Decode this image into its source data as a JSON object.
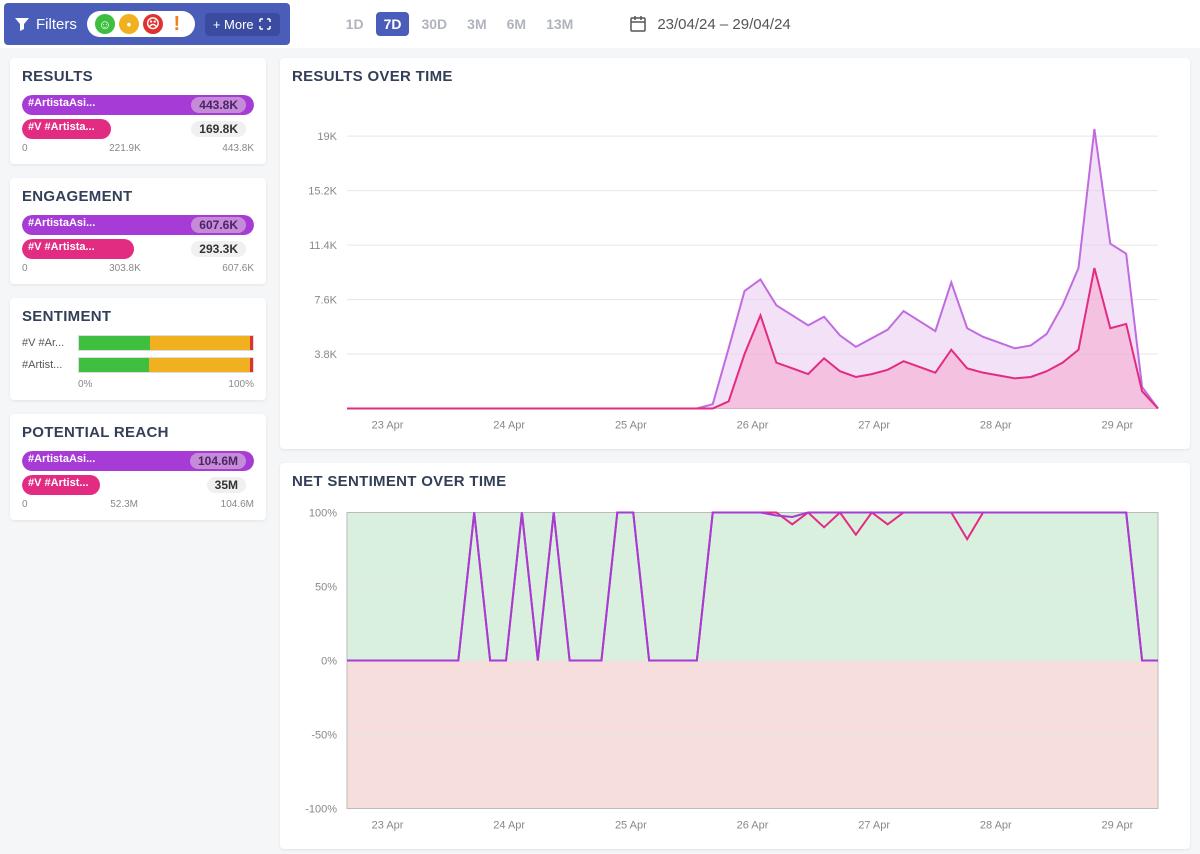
{
  "toolbar": {
    "filters_label": "Filters",
    "more_label": "+ More",
    "sentiment_faces": [
      {
        "color": "#3fbf3f",
        "glyph": "☺"
      },
      {
        "color": "#f0b020",
        "glyph": "•"
      },
      {
        "color": "#e03030",
        "glyph": "☹"
      },
      {
        "color": "#f08020",
        "glyph": "!"
      }
    ],
    "time_options": [
      {
        "label": "1D",
        "active": false
      },
      {
        "label": "7D",
        "active": true
      },
      {
        "label": "30D",
        "active": false
      },
      {
        "label": "3M",
        "active": false
      },
      {
        "label": "6M",
        "active": false
      },
      {
        "label": "13M",
        "active": false
      }
    ],
    "date_range": "23/04/24 – 29/04/24"
  },
  "sidebar": {
    "results": {
      "title": "RESULTS",
      "bars": [
        {
          "label": "#ArtistaAsi...",
          "value_label": "443.8K",
          "value": 443.8,
          "max": 443.8,
          "fill": "#a63bd6",
          "badge_bg": "#c58bd8",
          "badge_fg": "#4a2563"
        },
        {
          "label": "#V #Artista...",
          "value_label": "169.8K",
          "value": 169.8,
          "max": 443.8,
          "fill": "#e22c82",
          "badge_bg": "#f0f0f0",
          "badge_fg": "#333"
        }
      ],
      "axis": [
        "0",
        "221.9K",
        "443.8K"
      ]
    },
    "engagement": {
      "title": "ENGAGEMENT",
      "bars": [
        {
          "label": "#ArtistaAsi...",
          "value_label": "607.6K",
          "value": 607.6,
          "max": 607.6,
          "fill": "#a63bd6",
          "badge_bg": "#c58bd8",
          "badge_fg": "#4a2563"
        },
        {
          "label": "#V #Artista...",
          "value_label": "293.3K",
          "value": 293.3,
          "max": 607.6,
          "fill": "#e22c82",
          "badge_bg": "#f0f0f0",
          "badge_fg": "#333"
        }
      ],
      "axis": [
        "0",
        "303.8K",
        "607.6K"
      ]
    },
    "sentiment": {
      "title": "SENTIMENT",
      "rows": [
        {
          "label": "#V #Ar...",
          "segments": [
            {
              "color": "#3fbf3f",
              "pct": 41
            },
            {
              "color": "#f0b020",
              "pct": 57
            },
            {
              "color": "#e03030",
              "pct": 2
            }
          ]
        },
        {
          "label": "#Artist...",
          "segments": [
            {
              "color": "#3fbf3f",
              "pct": 40
            },
            {
              "color": "#f0b020",
              "pct": 58
            },
            {
              "color": "#e03030",
              "pct": 2
            }
          ]
        }
      ],
      "axis": [
        "0%",
        "100%"
      ]
    },
    "reach": {
      "title": "POTENTIAL REACH",
      "bars": [
        {
          "label": "#ArtistaAsi...",
          "value_label": "104.6M",
          "value": 104.6,
          "max": 104.6,
          "fill": "#a63bd6",
          "badge_bg": "#c58bd8",
          "badge_fg": "#4a2563"
        },
        {
          "label": "#V #Artist...",
          "value_label": "35M",
          "value": 35,
          "max": 104.6,
          "fill": "#e22c82",
          "badge_bg": "#f0f0f0",
          "badge_fg": "#333"
        }
      ],
      "axis": [
        "0",
        "52.3M",
        "104.6M"
      ]
    }
  },
  "results_chart": {
    "title": "RESULTS OVER TIME",
    "x_labels": [
      "23 Apr",
      "24 Apr",
      "25 Apr",
      "26 Apr",
      "27 Apr",
      "28 Apr",
      "29 Apr"
    ],
    "y_ticks": [
      3.8,
      7.6,
      11.4,
      15.2,
      19
    ],
    "y_tick_labels": [
      "3.8K",
      "7.6K",
      "11.4K",
      "15.2K",
      "19K"
    ],
    "y_max": 21,
    "grid_color": "#e6e6e6",
    "background": "#ffffff",
    "series": [
      {
        "name": "purple",
        "stroke": "#c06be0",
        "fill": "#e9c8f0",
        "fill_opacity": 0.55,
        "data": [
          0,
          0,
          0,
          0,
          0,
          0,
          0,
          0,
          0,
          0,
          0,
          0,
          0,
          0,
          0,
          0,
          0,
          0,
          0,
          0,
          0,
          0,
          0,
          0.3,
          4.2,
          8.2,
          9,
          7.2,
          6.5,
          5.8,
          6.4,
          5.1,
          4.3,
          4.9,
          5.5,
          6.8,
          6.1,
          5.4,
          8.8,
          5.6,
          5.0,
          4.6,
          4.2,
          4.4,
          5.2,
          7.2,
          9.8,
          19.5,
          11.5,
          10.8,
          1.5,
          0
        ]
      },
      {
        "name": "pink",
        "stroke": "#e22c82",
        "fill": "#f4a8cf",
        "fill_opacity": 0.55,
        "data": [
          0,
          0,
          0,
          0,
          0,
          0,
          0,
          0,
          0,
          0,
          0,
          0,
          0,
          0,
          0,
          0,
          0,
          0,
          0,
          0,
          0,
          0,
          0,
          0,
          0.5,
          3.8,
          6.5,
          3.2,
          2.8,
          2.4,
          3.5,
          2.6,
          2.2,
          2.4,
          2.7,
          3.3,
          2.9,
          2.5,
          4.1,
          2.8,
          2.5,
          2.3,
          2.1,
          2.2,
          2.6,
          3.2,
          4.1,
          9.8,
          5.6,
          5.9,
          1.2,
          0
        ]
      }
    ]
  },
  "sentiment_chart": {
    "title": "NET SENTIMENT OVER TIME",
    "x_labels": [
      "23 Apr",
      "24 Apr",
      "25 Apr",
      "26 Apr",
      "27 Apr",
      "28 Apr",
      "29 Apr"
    ],
    "y_ticks": [
      -100,
      -50,
      0,
      50,
      100
    ],
    "y_tick_labels": [
      "-100%",
      "-50%",
      "0%",
      "50%",
      "100%"
    ],
    "grid_color": "#e6e6e6",
    "top_band": "#d9f0de",
    "bottom_band": "#f5dedc",
    "series": [
      {
        "name": "pink",
        "stroke": "#e22c82",
        "data": [
          0,
          0,
          0,
          0,
          0,
          0,
          0,
          0,
          100,
          0,
          0,
          100,
          0,
          100,
          0,
          0,
          0,
          100,
          100,
          0,
          0,
          0,
          0,
          100,
          100,
          100,
          100,
          100,
          92,
          100,
          90,
          100,
          85,
          100,
          92,
          100,
          100,
          100,
          100,
          82,
          100,
          100,
          100,
          100,
          100,
          100,
          100,
          100,
          100,
          100,
          0,
          0
        ]
      },
      {
        "name": "purple",
        "stroke": "#a63bd6",
        "data": [
          0,
          0,
          0,
          0,
          0,
          0,
          0,
          0,
          100,
          0,
          0,
          100,
          0,
          100,
          0,
          0,
          0,
          100,
          100,
          0,
          0,
          0,
          0,
          100,
          100,
          100,
          100,
          98,
          97,
          100,
          100,
          100,
          100,
          100,
          100,
          100,
          100,
          100,
          100,
          100,
          100,
          100,
          100,
          100,
          100,
          100,
          100,
          100,
          100,
          100,
          0,
          0
        ]
      }
    ]
  }
}
